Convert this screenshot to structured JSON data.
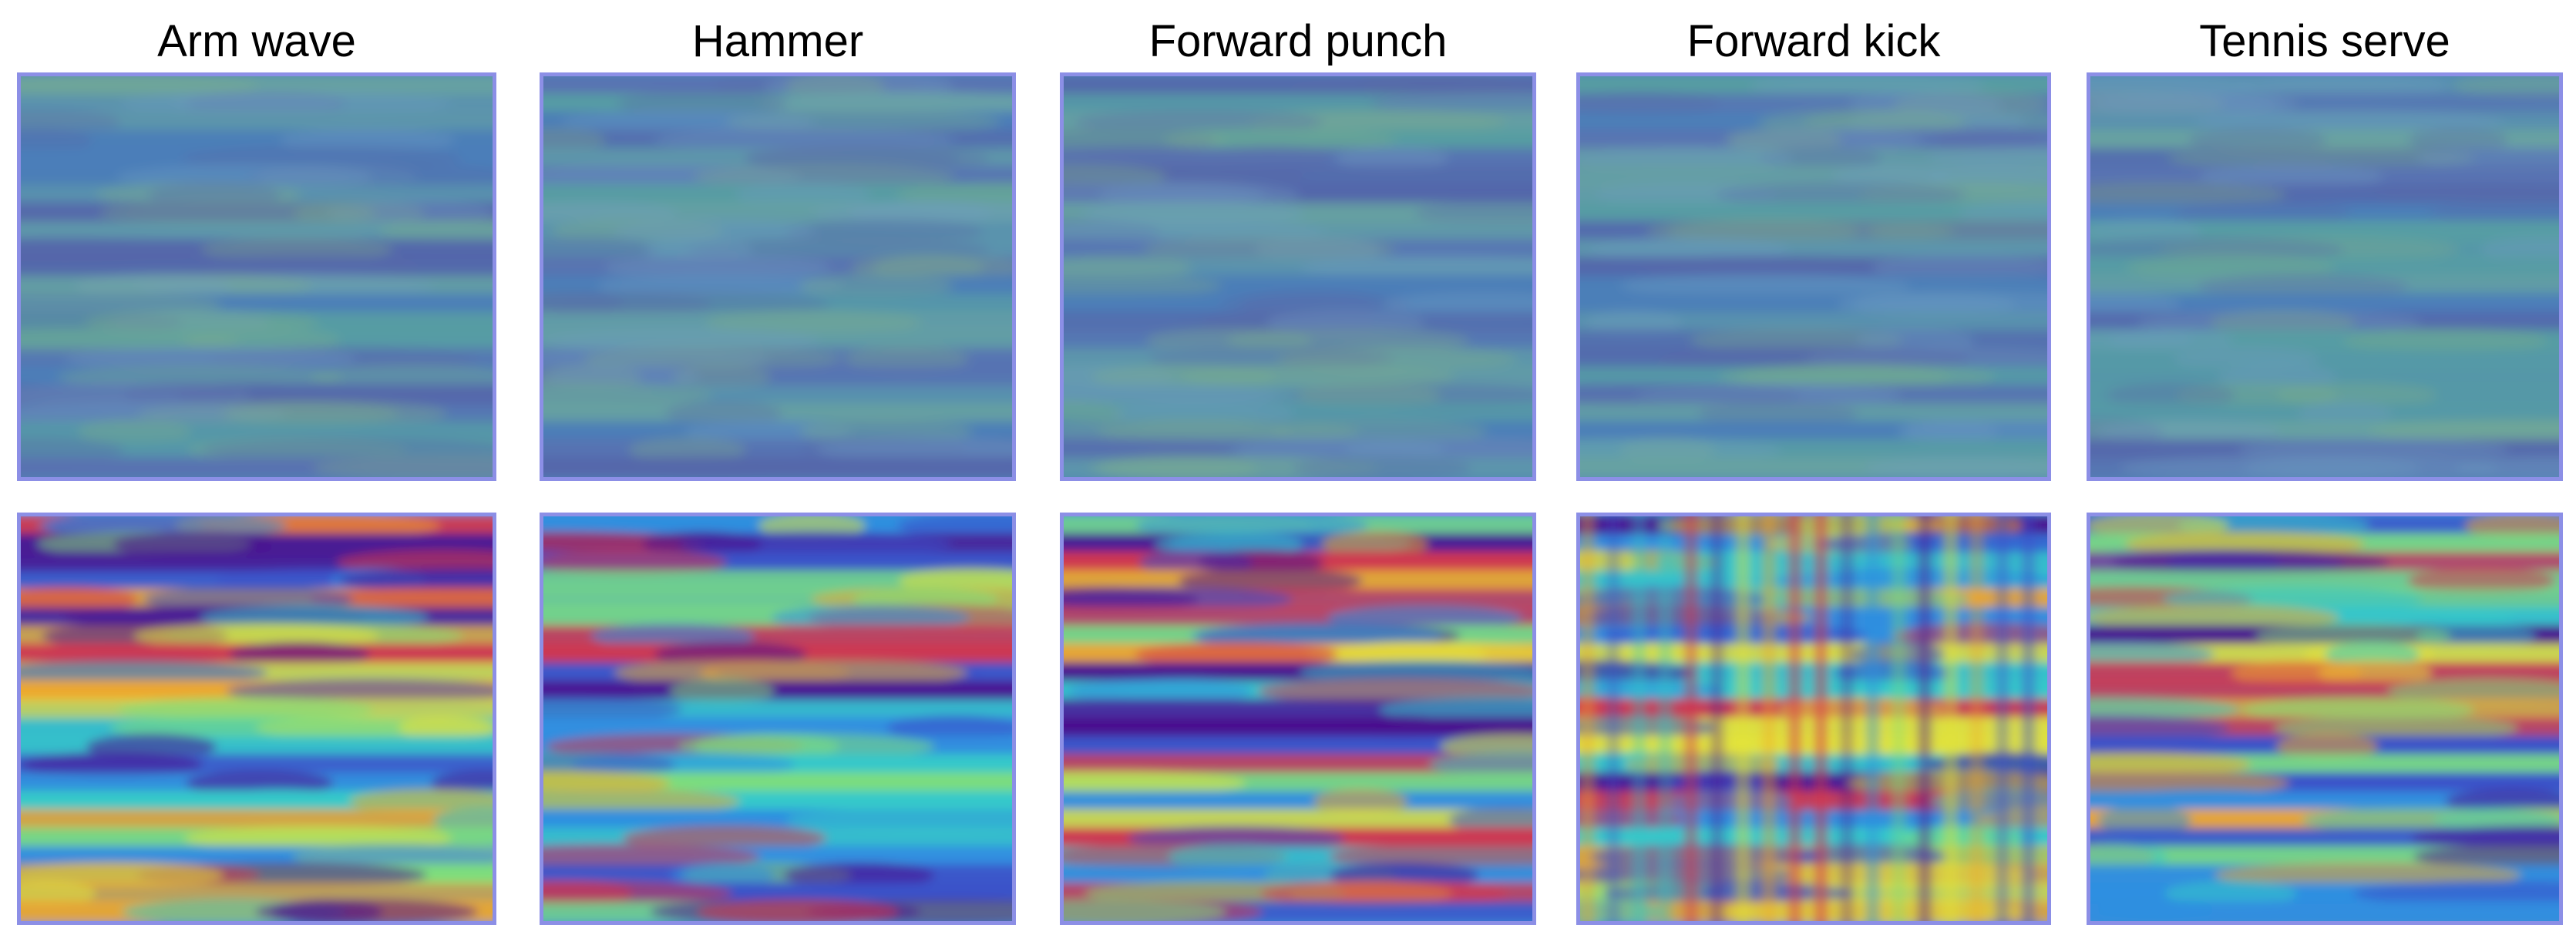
{
  "figure": {
    "columns": [
      {
        "title": "Arm wave"
      },
      {
        "title": "Hammer"
      },
      {
        "title": "Forward punch"
      },
      {
        "title": "Forward kick"
      },
      {
        "title": "Tennis serve"
      }
    ],
    "colors": {
      "border": "#8c8fe6",
      "background": "#ffffff",
      "muted_base": "#4f86b8",
      "colormap": [
        "#4b0f8e",
        "#3b4fc8",
        "#2f8fe0",
        "#35c9c9",
        "#7fe07a",
        "#e3e33a",
        "#f0a72a",
        "#d6344a"
      ]
    }
  }
}
